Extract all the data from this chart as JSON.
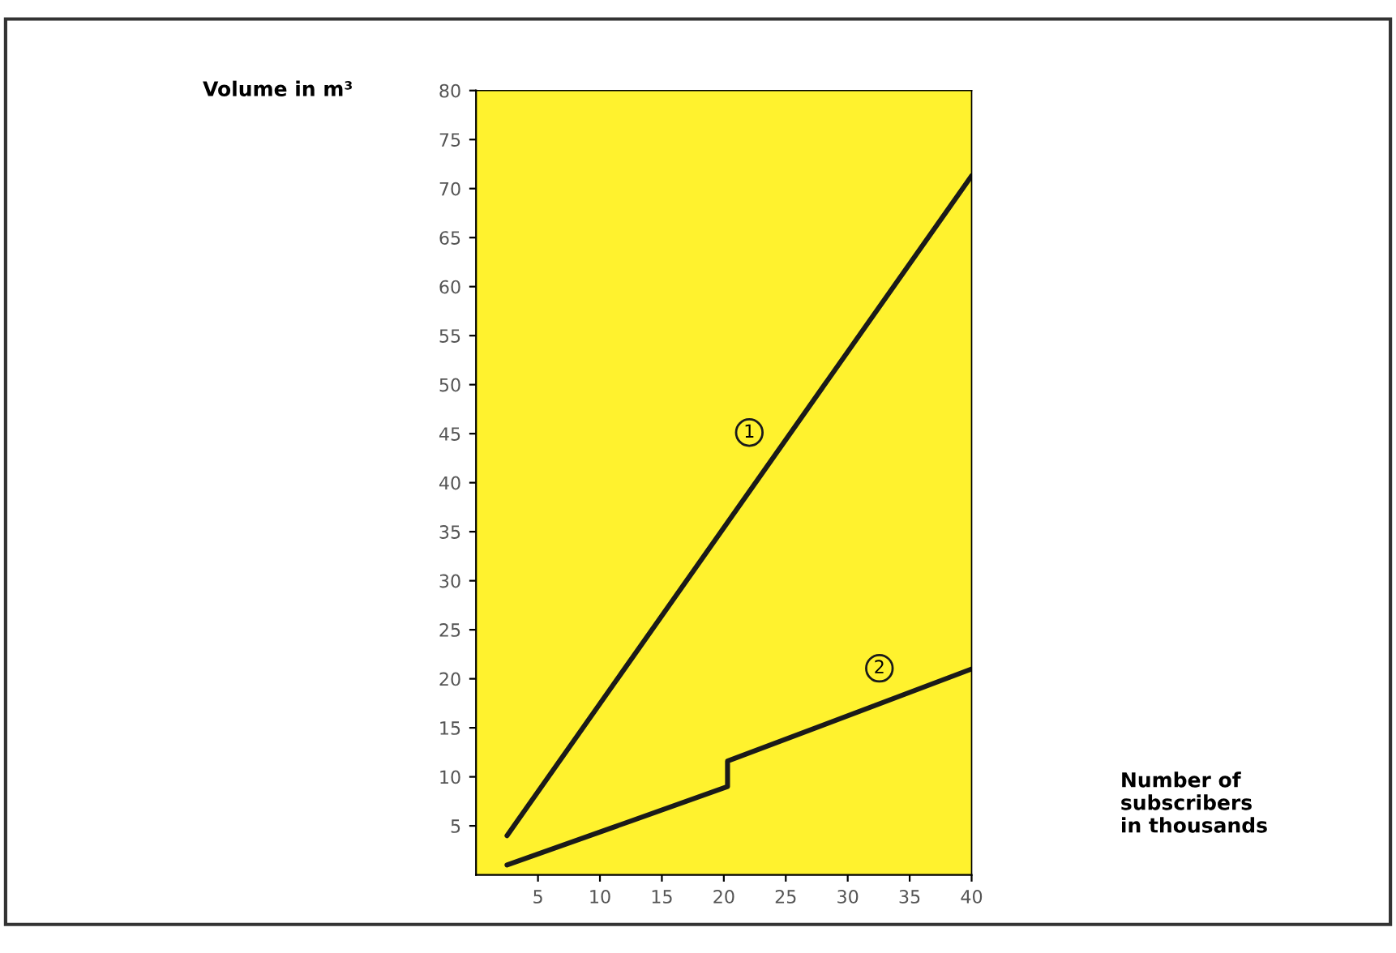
{
  "chart_data": {
    "type": "line",
    "ylabel": "Volume in m³",
    "annotations": [
      "Number of\nsubscribers\nin thousands"
    ],
    "series": [
      {
        "name": "1",
        "color": "#1a1a1a",
        "x": [
          2.5,
          40
        ],
        "values": [
          4,
          71.3
        ]
      },
      {
        "name": "2",
        "color": "#1a1a1a",
        "x": [
          2.5,
          20.3,
          20.3,
          40
        ],
        "values": [
          1,
          9,
          11.6,
          21
        ]
      }
    ],
    "xlim": [
      0,
      40
    ],
    "xticks": [
      5,
      10,
      15,
      20,
      25,
      30,
      35,
      40
    ],
    "ylim": [
      0,
      80
    ],
    "yticks": [
      5,
      10,
      15,
      20,
      25,
      30,
      35,
      40,
      45,
      50,
      55,
      60,
      65,
      70,
      75,
      80
    ],
    "grid": false,
    "legend": false,
    "marker": "none",
    "line_style": "solid"
  }
}
